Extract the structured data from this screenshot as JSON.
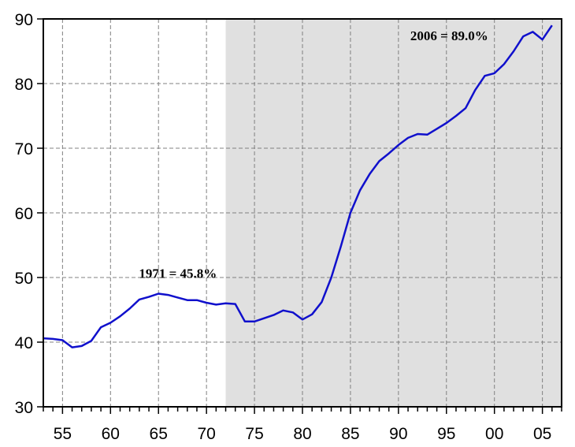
{
  "chart_data": {
    "type": "line",
    "title": "",
    "xlabel": "",
    "ylabel": "",
    "xlim": [
      1953,
      2007
    ],
    "ylim": [
      30,
      90
    ],
    "y_ticks": [
      30,
      40,
      50,
      60,
      70,
      80,
      90
    ],
    "y_tick_labels": [
      "30",
      "40",
      "50",
      "60",
      "70",
      "80",
      "90"
    ],
    "x_ticks": [
      1955,
      1960,
      1965,
      1970,
      1975,
      1980,
      1985,
      1990,
      1995,
      2000,
      2005
    ],
    "x_tick_labels": [
      "55",
      "60",
      "65",
      "70",
      "75",
      "80",
      "85",
      "90",
      "95",
      "00",
      "05"
    ],
    "grid": true,
    "shaded_region": [
      1972,
      2007
    ],
    "colors": {
      "line": "#1010cc",
      "shade": "#e0e0e0",
      "grid": "#808080"
    },
    "series": [
      {
        "x": [
          1953,
          1954,
          1955,
          1956,
          1957,
          1958,
          1959,
          1960,
          1961,
          1962,
          1963,
          1964,
          1965,
          1966,
          1967,
          1968,
          1969,
          1970,
          1971,
          1972,
          1973,
          1974,
          1975,
          1976,
          1977,
          1978,
          1979,
          1980,
          1981,
          1982,
          1983,
          1984,
          1985,
          1986,
          1987,
          1988,
          1989,
          1990,
          1991,
          1992,
          1993,
          1994,
          1995,
          1996,
          1997,
          1998,
          1999,
          2000,
          2001,
          2002,
          2003,
          2004,
          2005,
          2006
        ],
        "values": [
          40.6,
          40.5,
          40.3,
          39.2,
          39.4,
          40.2,
          42.3,
          43.0,
          44.0,
          45.2,
          46.6,
          47.0,
          47.5,
          47.3,
          46.9,
          46.5,
          46.5,
          46.1,
          45.8,
          46.0,
          45.9,
          43.2,
          43.2,
          43.7,
          44.2,
          44.9,
          44.6,
          43.5,
          44.3,
          46.2,
          50.0,
          54.8,
          60.0,
          63.5,
          66.0,
          68.0,
          69.2,
          70.5,
          71.6,
          72.2,
          72.1,
          73.0,
          73.9,
          75.0,
          76.2,
          79.0,
          81.2,
          81.6,
          83.0,
          85.0,
          87.3,
          88.0,
          86.8,
          89.0
        ]
      }
    ],
    "annotations": [
      {
        "text": "1971 = 45.8%",
        "x": 1971,
        "y": 45.8
      },
      {
        "text": "2006 = 89.0%",
        "x": 2006,
        "y": 89.0
      }
    ]
  }
}
